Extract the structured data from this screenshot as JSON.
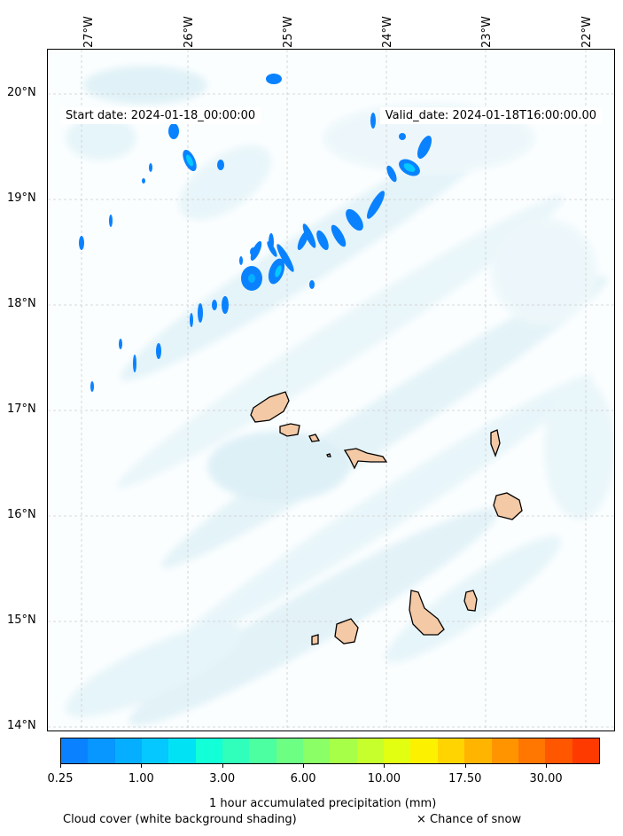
{
  "map": {
    "start_date": "Start date: 2024-01-18_00:00:00",
    "valid_date": "Valid_date: 2024-01-18T16:00:00.00",
    "lon_labels": [
      "27°W",
      "26°W",
      "25°W",
      "24°W",
      "23°W",
      "22°W"
    ],
    "lat_labels": [
      "20°N",
      "19°N",
      "18°N",
      "17°N",
      "16°N",
      "15°N",
      "14°N"
    ]
  },
  "colorbar": {
    "colors": [
      "#0a82ff",
      "#0896ff",
      "#06aeff",
      "#04c8ff",
      "#02e2f5",
      "#12ffd8",
      "#30ffbc",
      "#4cffa0",
      "#6cff84",
      "#8aff66",
      "#a8ff48",
      "#c6ff2c",
      "#e2ff12",
      "#fcf200",
      "#ffd400",
      "#ffb400",
      "#ff9400",
      "#ff7600",
      "#ff5600",
      "#ff3a00"
    ],
    "tick_labels": [
      "0.25",
      "1.00",
      "3.00",
      "6.00",
      "10.00",
      "17.50",
      "30.00"
    ],
    "label": "1 hour accumulated precipitation (mm)"
  },
  "legend": {
    "cloud_cover": "Cloud cover (white background shading)",
    "snow": "× Chance of snow"
  }
}
